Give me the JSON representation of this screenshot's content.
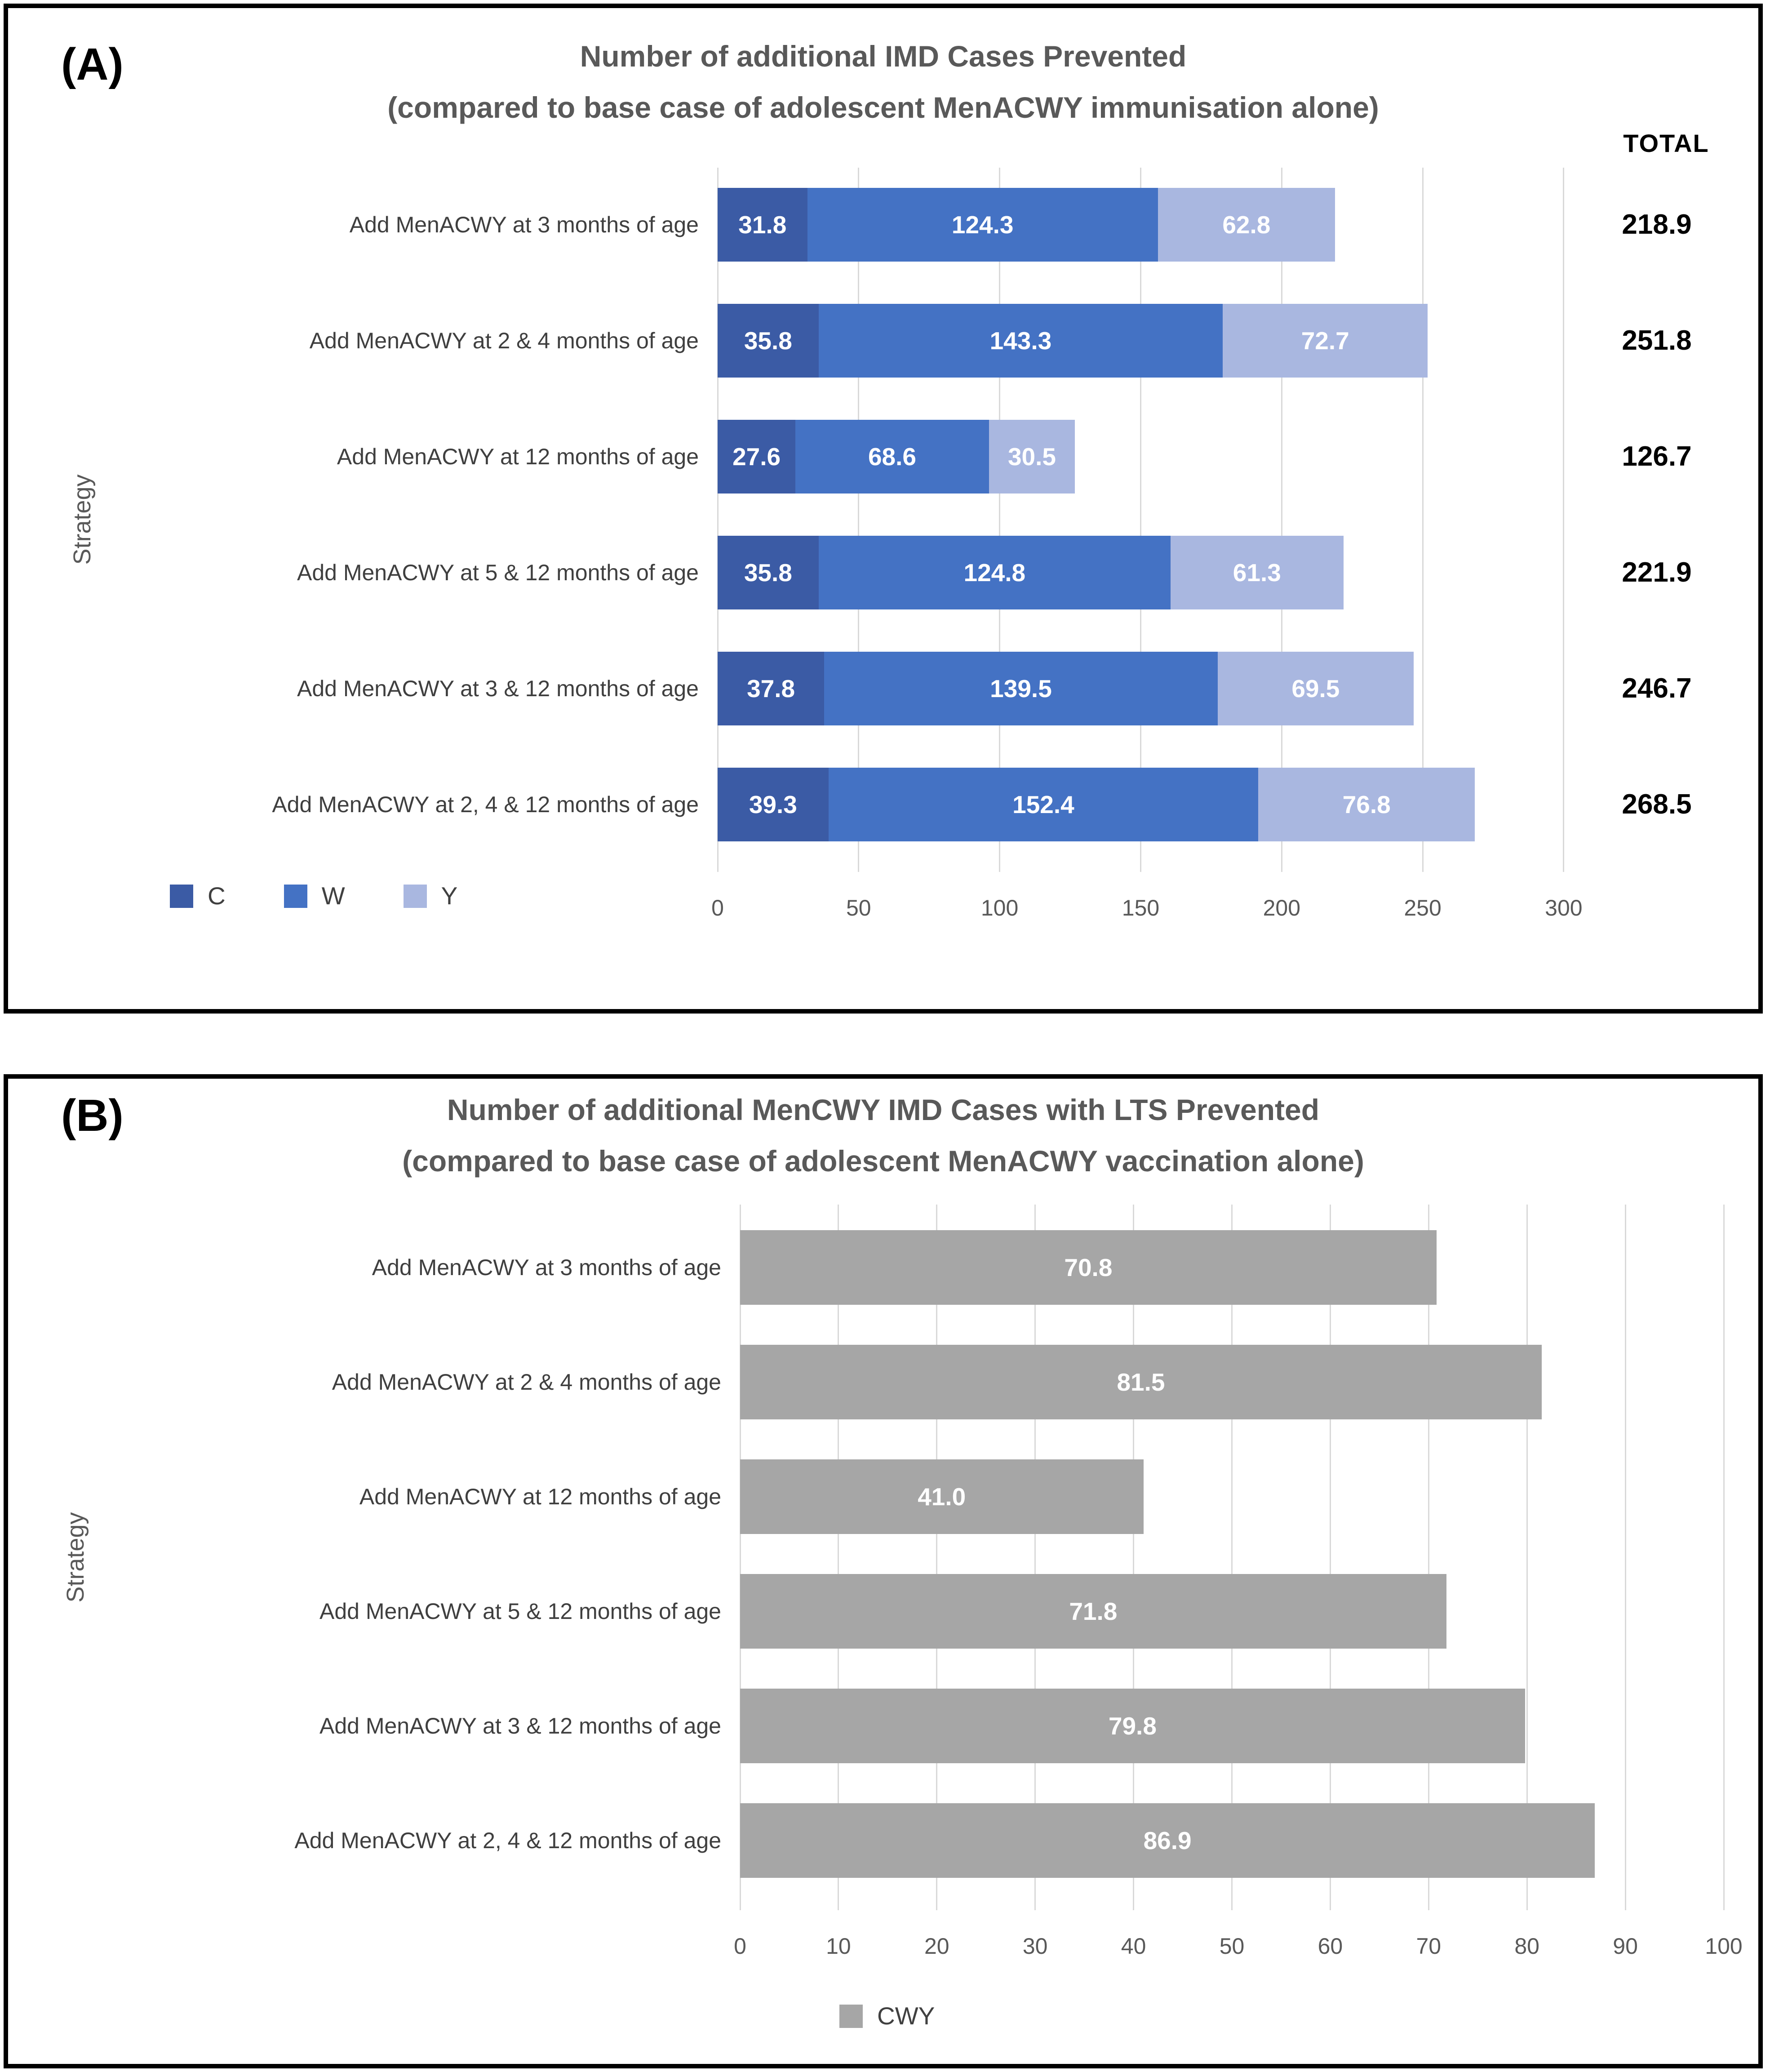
{
  "colors": {
    "series_c": "#3B5BA5",
    "series_w": "#4472C4",
    "series_y": "#A9B7E0",
    "series_cwy": "#A6A6A6",
    "gridline": "#D9D9D9",
    "title_text": "#595959",
    "axis_text": "#595959",
    "category_text": "#3F3F3F",
    "total_text": "#000000",
    "bar_label_text": "#FFFFFF"
  },
  "chart_data": [
    {
      "type": "bar",
      "orientation": "horizontal",
      "stacked": true,
      "panel_label": "(A)",
      "title_line1": "Number of additional IMD Cases Prevented",
      "title_line2": "(compared to base case of adolescent MenACWY immunisation alone)",
      "total_header": "TOTAL",
      "ylabel": "Strategy",
      "xlim": [
        0,
        300
      ],
      "x_ticks": [
        0,
        50,
        100,
        150,
        200,
        250,
        300
      ],
      "grid": true,
      "legend_position": "bottom-left",
      "categories": [
        "Add MenACWY at 3 months of age",
        "Add MenACWY at 2 & 4 months of age",
        "Add MenACWY at 12 months of age",
        "Add MenACWY at 5 & 12 months of age",
        "Add MenACWY at 3 & 12 months of age",
        "Add MenACWY at 2, 4 & 12 months of age"
      ],
      "series": [
        {
          "name": "C",
          "color": "#3B5BA5",
          "values": [
            31.8,
            35.8,
            27.6,
            35.8,
            37.8,
            39.3
          ]
        },
        {
          "name": "W",
          "color": "#4472C4",
          "values": [
            124.3,
            143.3,
            68.6,
            124.8,
            139.5,
            152.4
          ]
        },
        {
          "name": "Y",
          "color": "#A9B7E0",
          "values": [
            62.8,
            72.7,
            30.5,
            61.3,
            69.5,
            76.8
          ]
        }
      ],
      "totals": [
        "218.9",
        "251.8",
        "126.7",
        "221.9",
        "246.7",
        "268.5"
      ]
    },
    {
      "type": "bar",
      "orientation": "horizontal",
      "stacked": false,
      "panel_label": "(B)",
      "title_line1": "Number of additional MenCWY IMD Cases with LTS Prevented",
      "title_line2": "(compared to base case of adolescent MenACWY vaccination alone)",
      "ylabel": "Strategy",
      "xlim": [
        0,
        100
      ],
      "x_ticks": [
        0,
        10,
        20,
        30,
        40,
        50,
        60,
        70,
        80,
        90,
        100
      ],
      "grid": true,
      "legend_position": "bottom-center",
      "categories": [
        "Add MenACWY at 3 months of age",
        "Add MenACWY at 2 & 4 months of age",
        "Add MenACWY at 12 months of age",
        "Add MenACWY at 5 & 12 months of age",
        "Add MenACWY at 3 & 12 months of age",
        "Add MenACWY at 2, 4 & 12 months of age"
      ],
      "series": [
        {
          "name": "CWY",
          "color": "#A6A6A6",
          "values": [
            70.8,
            81.5,
            41.0,
            71.8,
            79.8,
            86.9
          ]
        }
      ]
    }
  ]
}
